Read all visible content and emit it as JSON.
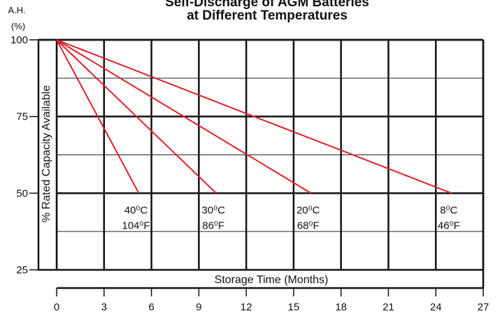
{
  "chart_data": {
    "type": "line",
    "title_line1": "Self-Discharge of AGM Batteries",
    "title_line2": "at Different Temperatures",
    "ylabel": "% Rated Capacity Available",
    "xlabel": "Storage Time (Months)",
    "y_unit_line1": "A.H.",
    "y_unit_line2": "(%)",
    "xlim": [
      0,
      27
    ],
    "ylim": [
      25,
      100
    ],
    "x_ticks": [
      0,
      3,
      6,
      9,
      12,
      15,
      18,
      21,
      24,
      27
    ],
    "y_ticks": [
      25,
      50,
      75,
      100
    ],
    "grid": true,
    "series": [
      {
        "label_c": "40⁰C",
        "label_f": "104⁰F",
        "x": [
          0,
          5.2
        ],
        "y": [
          100,
          50
        ]
      },
      {
        "label_c": "30⁰C",
        "label_f": "86⁰F",
        "x": [
          0,
          10.1
        ],
        "y": [
          100,
          50
        ]
      },
      {
        "label_c": "20⁰C",
        "label_f": "68⁰F",
        "x": [
          0,
          16.1
        ],
        "y": [
          100,
          50
        ]
      },
      {
        "label_c": "8⁰C",
        "label_f": "46⁰F",
        "x": [
          0,
          25
        ],
        "y": [
          100,
          50
        ]
      }
    ],
    "line_color": "#e0202a"
  }
}
